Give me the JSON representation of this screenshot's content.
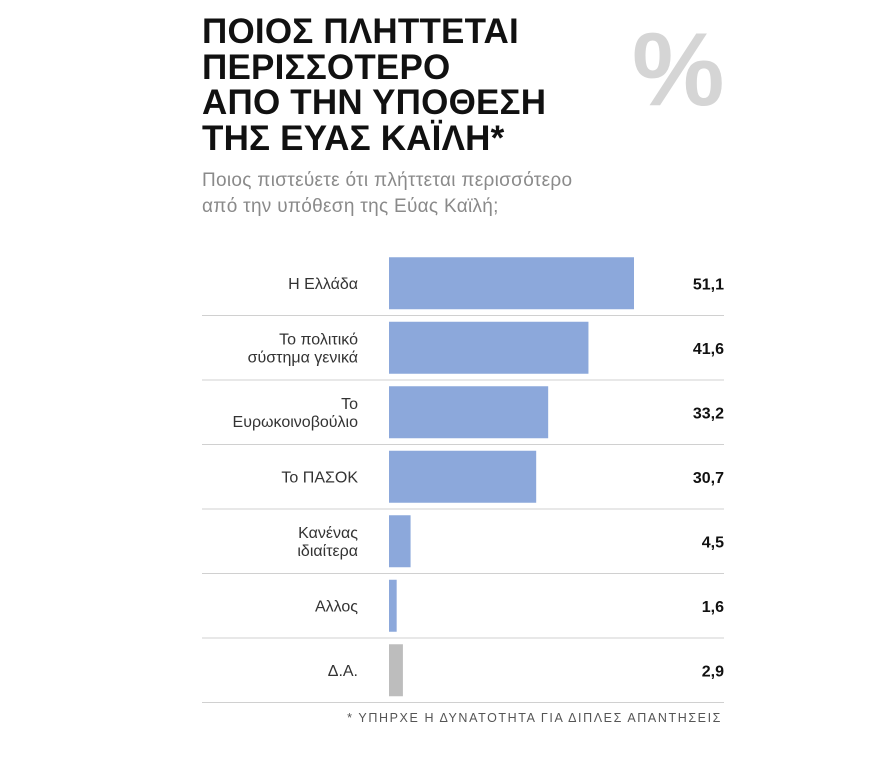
{
  "header": {
    "title": "ΠΟΙΟΣ ΠΛΗΤΤΕΤΑΙ\nΠΕΡΙΣΣΟΤΕΡΟ\nΑΠΟ ΤΗΝ ΥΠΟΘΕΣΗ\nΤΗΣ ΕΥΑΣ ΚΑΪΛΗ*",
    "subtitle": "Ποιος πιστεύετε ότι πλήττεται περισσότερο\nαπό την υπόθεση της Εύας Καϊλή;",
    "percent_symbol": "%"
  },
  "footnote": "* ΥΠΗΡΧΕ Η ΔΥΝΑΤΟΤΗΤΑ ΓΙΑ ΔΙΠΛΕΣ ΑΠΑΝΤΗΣΕΙΣ",
  "chart_data": {
    "type": "bar",
    "orientation": "horizontal",
    "categories": [
      [
        "Η Ελλάδα"
      ],
      [
        "Το πολιτικό",
        "σύστημα γενικά"
      ],
      [
        "Το",
        "Ευρωκοινοβούλιο"
      ],
      [
        "Το ΠΑΣΟΚ"
      ],
      [
        "Κανένας",
        "ιδιαίτερα"
      ],
      [
        "Αλλος"
      ],
      [
        "Δ.Α."
      ]
    ],
    "values": [
      51.1,
      41.6,
      33.2,
      30.7,
      4.5,
      1.6,
      2.9
    ],
    "value_labels": [
      "51,1",
      "41,6",
      "33,2",
      "30,7",
      "4,5",
      "1,6",
      "2,9"
    ],
    "bar_colors": [
      "#8ca8db",
      "#8ca8db",
      "#8ca8db",
      "#8ca8db",
      "#8ca8db",
      "#8ca8db",
      "#bdbdbd"
    ],
    "separator_color": "#d0d0d0",
    "xlim": [
      0,
      51.1
    ],
    "grid": false,
    "legend": "none"
  }
}
